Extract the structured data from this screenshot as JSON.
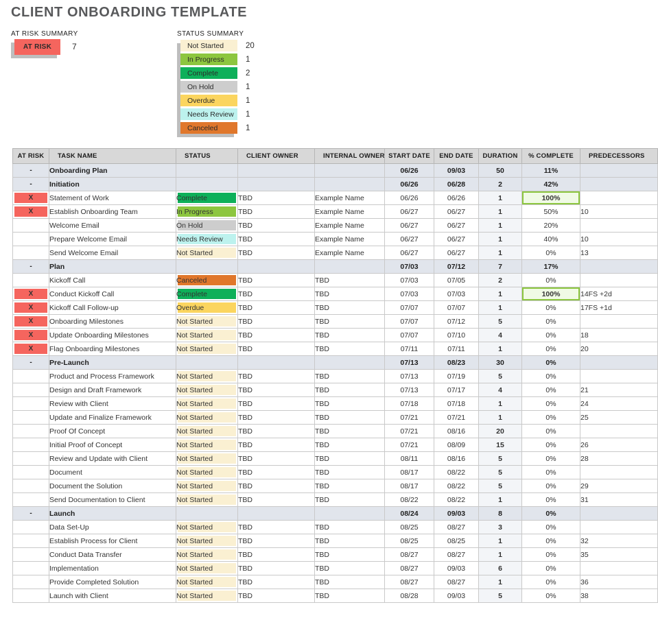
{
  "page_title": "CLIENT ONBOARDING TEMPLATE",
  "at_risk_summary": {
    "label": "AT RISK SUMMARY",
    "badge_label": "AT RISK",
    "count": "7",
    "badge_color": "#f5655e"
  },
  "status_summary": {
    "label": "STATUS SUMMARY",
    "items": [
      {
        "status": "Not Started",
        "count": "20"
      },
      {
        "status": "In Progress",
        "count": "1"
      },
      {
        "status": "Complete",
        "count": "2"
      },
      {
        "status": "On Hold",
        "count": "1"
      },
      {
        "status": "Overdue",
        "count": "1"
      },
      {
        "status": "Needs Review",
        "count": "1"
      },
      {
        "status": "Canceled",
        "count": "1"
      }
    ]
  },
  "status_colors": {
    "Not Started": "#faf0d2",
    "In Progress": "#8dc63f",
    "Complete": "#0eb05a",
    "On Hold": "#cdcdcd",
    "Overdue": "#fbd55f",
    "Needs Review": "#bdf2ee",
    "Canceled": "#e0772b"
  },
  "table": {
    "columns": [
      "AT RISK",
      "TASK NAME",
      "STATUS",
      "CLIENT OWNER",
      "INTERNAL OWNER",
      "START DATE",
      "END DATE",
      "DURATION",
      "% COMPLETE",
      "PREDECESSORS"
    ],
    "rows": [
      {
        "type": "section",
        "at_risk": "-",
        "task": "Onboarding Plan",
        "start": "06/26",
        "end": "09/03",
        "duration": "50",
        "pct": "11%"
      },
      {
        "type": "section",
        "at_risk": "-",
        "task": "Initiation",
        "start": "06/26",
        "end": "06/28",
        "duration": "2",
        "pct": "42%"
      },
      {
        "type": "task",
        "level": 1,
        "at_risk": true,
        "task": "Statement of Work",
        "status": "Complete",
        "client": "TBD",
        "internal": "Example Name",
        "start": "06/26",
        "end": "06/26",
        "duration": "1",
        "pct": "100%",
        "pct_highlight": true,
        "pred": ""
      },
      {
        "type": "task",
        "level": 1,
        "at_risk": true,
        "task": "Establish Onboarding Team",
        "status": "In Progress",
        "client": "TBD",
        "internal": "Example Name",
        "start": "06/27",
        "end": "06/27",
        "duration": "1",
        "pct": "50%",
        "pred": "10"
      },
      {
        "type": "task",
        "level": 1,
        "at_risk": false,
        "task": "Welcome Email",
        "status": "On Hold",
        "client": "TBD",
        "internal": "Example Name",
        "start": "06/27",
        "end": "06/27",
        "duration": "1",
        "pct": "20%",
        "pred": ""
      },
      {
        "type": "task",
        "level": 2,
        "at_risk": false,
        "task": "Prepare Welcome Email",
        "status": "Needs Review",
        "client": "TBD",
        "internal": "Example Name",
        "start": "06/27",
        "end": "06/27",
        "duration": "1",
        "pct": "40%",
        "pred": "10"
      },
      {
        "type": "task",
        "level": 2,
        "at_risk": false,
        "task": "Send Welcome Email",
        "status": "Not Started",
        "client": "TBD",
        "internal": "Example Name",
        "start": "06/27",
        "end": "06/27",
        "duration": "1",
        "pct": "0%",
        "pred": "13"
      },
      {
        "type": "section",
        "at_risk": "-",
        "task": "Plan",
        "start": "07/03",
        "end": "07/12",
        "duration": "7",
        "pct": "17%"
      },
      {
        "type": "task",
        "level": 1,
        "at_risk": false,
        "task": "Kickoff Call",
        "status": "Canceled",
        "client": "TBD",
        "internal": "TBD",
        "start": "07/03",
        "end": "07/05",
        "duration": "2",
        "pct": "0%",
        "pred": ""
      },
      {
        "type": "task",
        "level": 2,
        "at_risk": true,
        "task": "Conduct Kickoff Call",
        "status": "Complete",
        "client": "TBD",
        "internal": "TBD",
        "start": "07/03",
        "end": "07/03",
        "duration": "1",
        "pct": "100%",
        "pct_highlight": true,
        "pred": "14FS +2d"
      },
      {
        "type": "task",
        "level": 2,
        "at_risk": true,
        "task": "Kickoff Call Follow-up",
        "status": "Overdue",
        "client": "TBD",
        "internal": "TBD",
        "start": "07/07",
        "end": "07/07",
        "duration": "1",
        "pct": "0%",
        "pred": "17FS +1d"
      },
      {
        "type": "task",
        "level": 1,
        "at_risk": true,
        "task": "Onboarding Milestones",
        "status": "Not Started",
        "client": "TBD",
        "internal": "TBD",
        "start": "07/07",
        "end": "07/12",
        "duration": "5",
        "pct": "0%",
        "pred": ""
      },
      {
        "type": "task",
        "level": 2,
        "at_risk": true,
        "task": "Update Onboarding Milestones",
        "status": "Not Started",
        "client": "TBD",
        "internal": "TBD",
        "start": "07/07",
        "end": "07/10",
        "duration": "4",
        "pct": "0%",
        "pred": "18"
      },
      {
        "type": "task",
        "level": 2,
        "at_risk": true,
        "task": "Flag Onboarding Milestones",
        "status": "Not Started",
        "client": "TBD",
        "internal": "TBD",
        "start": "07/11",
        "end": "07/11",
        "duration": "1",
        "pct": "0%",
        "pred": "20"
      },
      {
        "type": "section",
        "at_risk": "-",
        "task": "Pre-Launch",
        "start": "07/13",
        "end": "08/23",
        "duration": "30",
        "pct": "0%"
      },
      {
        "type": "task",
        "level": 1,
        "at_risk": false,
        "task": "Product and Process Framework",
        "status": "Not Started",
        "client": "TBD",
        "internal": "TBD",
        "start": "07/13",
        "end": "07/19",
        "duration": "5",
        "pct": "0%",
        "pred": ""
      },
      {
        "type": "task",
        "level": 2,
        "at_risk": false,
        "task": "Design and Draft Framework",
        "status": "Not Started",
        "client": "TBD",
        "internal": "TBD",
        "start": "07/13",
        "end": "07/17",
        "duration": "4",
        "pct": "0%",
        "pred": "21"
      },
      {
        "type": "task",
        "level": 2,
        "at_risk": false,
        "task": "Review with Client",
        "status": "Not Started",
        "client": "TBD",
        "internal": "TBD",
        "start": "07/18",
        "end": "07/18",
        "duration": "1",
        "pct": "0%",
        "pred": "24"
      },
      {
        "type": "task",
        "level": 2,
        "at_risk": false,
        "task": "Update and Finalize Framework",
        "status": "Not Started",
        "client": "TBD",
        "internal": "TBD",
        "start": "07/21",
        "end": "07/21",
        "duration": "1",
        "pct": "0%",
        "pred": "25"
      },
      {
        "type": "task",
        "level": 1,
        "at_risk": false,
        "task": "Proof Of Concept",
        "status": "Not Started",
        "client": "TBD",
        "internal": "TBD",
        "start": "07/21",
        "end": "08/16",
        "duration": "20",
        "pct": "0%",
        "pred": ""
      },
      {
        "type": "task",
        "level": 2,
        "at_risk": false,
        "task": "Initial Proof of Concept",
        "status": "Not Started",
        "client": "TBD",
        "internal": "TBD",
        "start": "07/21",
        "end": "08/09",
        "duration": "15",
        "pct": "0%",
        "pred": "26"
      },
      {
        "type": "task",
        "level": 2,
        "at_risk": false,
        "task": "Review and Update with Client",
        "status": "Not Started",
        "client": "TBD",
        "internal": "TBD",
        "start": "08/11",
        "end": "08/16",
        "duration": "5",
        "pct": "0%",
        "pred": "28"
      },
      {
        "type": "task",
        "level": 1,
        "at_risk": false,
        "task": "Document",
        "status": "Not Started",
        "client": "TBD",
        "internal": "TBD",
        "start": "08/17",
        "end": "08/22",
        "duration": "5",
        "pct": "0%",
        "pred": ""
      },
      {
        "type": "task",
        "level": 2,
        "at_risk": false,
        "task": "Document the Solution",
        "status": "Not Started",
        "client": "TBD",
        "internal": "TBD",
        "start": "08/17",
        "end": "08/22",
        "duration": "5",
        "pct": "0%",
        "pred": "29"
      },
      {
        "type": "task",
        "level": 2,
        "at_risk": false,
        "task": "Send Documentation to Client",
        "status": "Not Started",
        "client": "TBD",
        "internal": "TBD",
        "start": "08/22",
        "end": "08/22",
        "duration": "1",
        "pct": "0%",
        "pred": "31"
      },
      {
        "type": "section",
        "at_risk": "-",
        "task": "Launch",
        "start": "08/24",
        "end": "09/03",
        "duration": "8",
        "pct": "0%"
      },
      {
        "type": "task",
        "level": 1,
        "at_risk": false,
        "task": "Data Set-Up",
        "status": "Not Started",
        "client": "TBD",
        "internal": "TBD",
        "start": "08/25",
        "end": "08/27",
        "duration": "3",
        "pct": "0%",
        "pred": ""
      },
      {
        "type": "task",
        "level": 2,
        "at_risk": false,
        "task": "Establish Process for Client",
        "status": "Not Started",
        "client": "TBD",
        "internal": "TBD",
        "start": "08/25",
        "end": "08/25",
        "duration": "1",
        "pct": "0%",
        "pred": "32"
      },
      {
        "type": "task",
        "level": 2,
        "at_risk": false,
        "task": "Conduct Data Transfer",
        "status": "Not Started",
        "client": "TBD",
        "internal": "TBD",
        "start": "08/27",
        "end": "08/27",
        "duration": "1",
        "pct": "0%",
        "pred": "35"
      },
      {
        "type": "task",
        "level": 1,
        "at_risk": false,
        "task": "Implementation",
        "status": "Not Started",
        "client": "TBD",
        "internal": "TBD",
        "start": "08/27",
        "end": "09/03",
        "duration": "6",
        "pct": "0%",
        "pred": ""
      },
      {
        "type": "task",
        "level": 2,
        "at_risk": false,
        "task": "Provide Completed Solution",
        "status": "Not Started",
        "client": "TBD",
        "internal": "TBD",
        "start": "08/27",
        "end": "08/27",
        "duration": "1",
        "pct": "0%",
        "pred": "36"
      },
      {
        "type": "task",
        "level": 2,
        "at_risk": false,
        "task": "Launch with Client",
        "status": "Not Started",
        "client": "TBD",
        "internal": "TBD",
        "start": "08/28",
        "end": "09/03",
        "duration": "5",
        "pct": "0%",
        "pred": "38"
      }
    ]
  }
}
